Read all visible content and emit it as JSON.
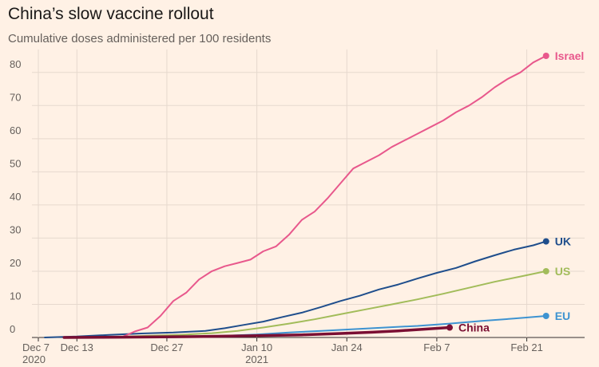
{
  "title": "China’s slow vaccine rollout",
  "subtitle": "Cumulative doses administered per 100 residents",
  "chart_data": {
    "type": "line",
    "title": "China’s slow vaccine rollout",
    "subtitle": "Cumulative doses administered per 100 residents",
    "xlabel": "",
    "ylabel": "",
    "ylim": [
      0,
      85
    ],
    "xlim": [
      "2020-12-07",
      "2021-03-02"
    ],
    "grid": true,
    "legend": "inline end labels",
    "y_ticks": [
      {
        "value": 0,
        "label": "0"
      },
      {
        "value": 10,
        "label": "10"
      },
      {
        "value": 20,
        "label": "20"
      },
      {
        "value": 30,
        "label": "30"
      },
      {
        "value": 40,
        "label": "40"
      },
      {
        "value": 50,
        "label": "50"
      },
      {
        "value": 60,
        "label": "60"
      },
      {
        "value": 70,
        "label": "70"
      },
      {
        "value": 80,
        "label": "80"
      }
    ],
    "x_ticks": [
      {
        "date": "2020-12-07",
        "label": "Dec 7",
        "sublabel": "2020"
      },
      {
        "date": "2020-12-13",
        "label": "Dec 13",
        "sublabel": ""
      },
      {
        "date": "2020-12-27",
        "label": "Dec 27",
        "sublabel": ""
      },
      {
        "date": "2021-01-10",
        "label": "Jan 10",
        "sublabel": "2021"
      },
      {
        "date": "2021-01-24",
        "label": "Jan 24",
        "sublabel": ""
      },
      {
        "date": "2021-02-07",
        "label": "Feb 7",
        "sublabel": ""
      },
      {
        "date": "2021-02-21",
        "label": "Feb 21",
        "sublabel": ""
      }
    ],
    "series": [
      {
        "name": "Israel",
        "color": "#e8588c",
        "points": [
          [
            "2020-12-19",
            0.0
          ],
          [
            "2020-12-20",
            0.1
          ],
          [
            "2020-12-22",
            1.8
          ],
          [
            "2020-12-24",
            3.0
          ],
          [
            "2020-12-26",
            6.5
          ],
          [
            "2020-12-28",
            11.0
          ],
          [
            "2020-12-30",
            13.5
          ],
          [
            "2021-01-01",
            17.5
          ],
          [
            "2021-01-03",
            20.0
          ],
          [
            "2021-01-05",
            21.5
          ],
          [
            "2021-01-07",
            22.5
          ],
          [
            "2021-01-09",
            23.5
          ],
          [
            "2021-01-11",
            26.0
          ],
          [
            "2021-01-13",
            27.5
          ],
          [
            "2021-01-15",
            31.0
          ],
          [
            "2021-01-17",
            35.5
          ],
          [
            "2021-01-19",
            38.0
          ],
          [
            "2021-01-21",
            42.0
          ],
          [
            "2021-01-23",
            46.5
          ],
          [
            "2021-01-25",
            51.0
          ],
          [
            "2021-01-27",
            53.0
          ],
          [
            "2021-01-29",
            55.0
          ],
          [
            "2021-01-31",
            57.5
          ],
          [
            "2021-02-02",
            59.5
          ],
          [
            "2021-02-04",
            61.5
          ],
          [
            "2021-02-06",
            63.5
          ],
          [
            "2021-02-08",
            65.5
          ],
          [
            "2021-02-10",
            68.0
          ],
          [
            "2021-02-12",
            70.0
          ],
          [
            "2021-02-14",
            72.5
          ],
          [
            "2021-02-16",
            75.5
          ],
          [
            "2021-02-18",
            78.0
          ],
          [
            "2021-02-20",
            80.0
          ],
          [
            "2021-02-22",
            83.0
          ],
          [
            "2021-02-24",
            85.0
          ]
        ]
      },
      {
        "name": "UK",
        "color": "#1f4e8c",
        "points": [
          [
            "2020-12-08",
            0.0
          ],
          [
            "2020-12-13",
            0.3
          ],
          [
            "2020-12-18",
            0.8
          ],
          [
            "2020-12-23",
            1.2
          ],
          [
            "2020-12-28",
            1.5
          ],
          [
            "2021-01-02",
            2.0
          ],
          [
            "2021-01-05",
            2.8
          ],
          [
            "2021-01-08",
            3.8
          ],
          [
            "2021-01-11",
            4.8
          ],
          [
            "2021-01-14",
            6.2
          ],
          [
            "2021-01-17",
            7.5
          ],
          [
            "2021-01-20",
            9.2
          ],
          [
            "2021-01-23",
            11.0
          ],
          [
            "2021-01-26",
            12.6
          ],
          [
            "2021-01-29",
            14.5
          ],
          [
            "2021-02-01",
            16.0
          ],
          [
            "2021-02-04",
            17.8
          ],
          [
            "2021-02-07",
            19.5
          ],
          [
            "2021-02-10",
            21.0
          ],
          [
            "2021-02-13",
            23.0
          ],
          [
            "2021-02-16",
            24.8
          ],
          [
            "2021-02-19",
            26.5
          ],
          [
            "2021-02-22",
            27.8
          ],
          [
            "2021-02-24",
            29.0
          ]
        ]
      },
      {
        "name": "US",
        "color": "#a2bc5a",
        "points": [
          [
            "2020-12-14",
            0.0
          ],
          [
            "2020-12-19",
            0.2
          ],
          [
            "2020-12-24",
            0.5
          ],
          [
            "2020-12-29",
            0.8
          ],
          [
            "2021-01-03",
            1.3
          ],
          [
            "2021-01-07",
            2.0
          ],
          [
            "2021-01-11",
            3.0
          ],
          [
            "2021-01-15",
            4.2
          ],
          [
            "2021-01-19",
            5.5
          ],
          [
            "2021-01-23",
            7.0
          ],
          [
            "2021-01-27",
            8.5
          ],
          [
            "2021-01-31",
            10.0
          ],
          [
            "2021-02-04",
            11.5
          ],
          [
            "2021-02-08",
            13.2
          ],
          [
            "2021-02-12",
            15.0
          ],
          [
            "2021-02-16",
            16.8
          ],
          [
            "2021-02-20",
            18.4
          ],
          [
            "2021-02-24",
            20.0
          ]
        ]
      },
      {
        "name": "EU",
        "color": "#3d93d1",
        "points": [
          [
            "2020-12-26",
            0.0
          ],
          [
            "2020-12-31",
            0.2
          ],
          [
            "2021-01-05",
            0.5
          ],
          [
            "2021-01-10",
            0.9
          ],
          [
            "2021-01-15",
            1.5
          ],
          [
            "2021-01-20",
            2.0
          ],
          [
            "2021-01-25",
            2.5
          ],
          [
            "2021-01-30",
            3.0
          ],
          [
            "2021-02-04",
            3.5
          ],
          [
            "2021-02-09",
            4.2
          ],
          [
            "2021-02-14",
            5.0
          ],
          [
            "2021-02-19",
            5.7
          ],
          [
            "2021-02-24",
            6.5
          ]
        ]
      },
      {
        "name": "China",
        "color": "#7a0f33",
        "points": [
          [
            "2020-12-11",
            0.0
          ],
          [
            "2020-12-20",
            0.1
          ],
          [
            "2020-12-30",
            0.25
          ],
          [
            "2021-01-09",
            0.5
          ],
          [
            "2021-01-17",
            0.8
          ],
          [
            "2021-01-23",
            1.2
          ],
          [
            "2021-01-28",
            1.6
          ],
          [
            "2021-02-01",
            2.0
          ],
          [
            "2021-02-05",
            2.5
          ],
          [
            "2021-02-09",
            3.0
          ]
        ]
      }
    ]
  }
}
